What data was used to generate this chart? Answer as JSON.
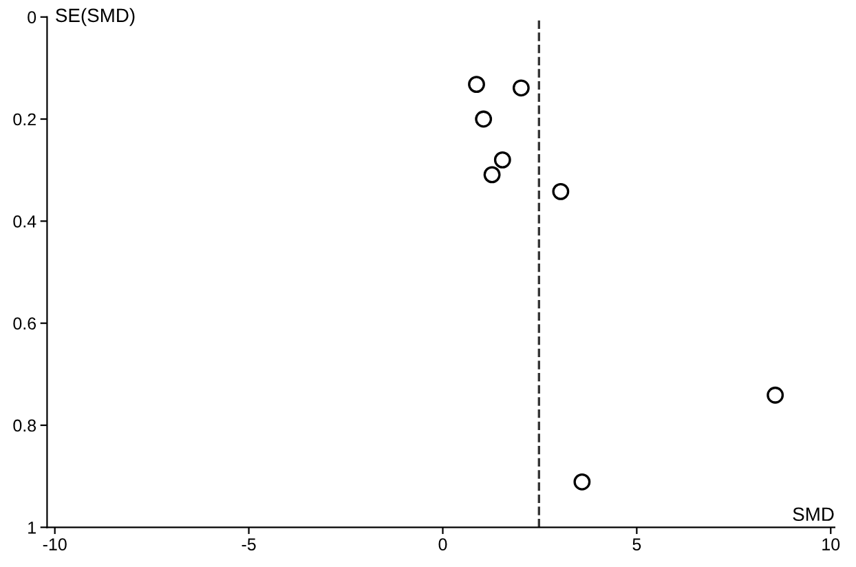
{
  "chart_data": {
    "type": "scatter",
    "xlabel": "SMD",
    "ylabel": "SE(SMD)",
    "x": [
      0.87,
      2.02,
      1.05,
      1.54,
      1.27,
      3.04,
      8.57,
      3.59
    ],
    "values": [
      0.132,
      0.139,
      0.2,
      0.28,
      0.309,
      0.342,
      0.741,
      0.911
    ],
    "color": "#000000",
    "marker": "circle",
    "xlim": [
      -10.2,
      10.1
    ],
    "ylim": [
      1,
      0
    ],
    "xticks": [
      -10,
      -5,
      0,
      5,
      10
    ],
    "yticks": [
      0,
      0.2,
      0.4,
      0.6,
      0.8,
      1
    ],
    "ref_lines": [
      {
        "axis": "x",
        "value": 2.48,
        "color": "#333333",
        "line_style": "dashed"
      }
    ],
    "grid": false,
    "legend": false
  }
}
